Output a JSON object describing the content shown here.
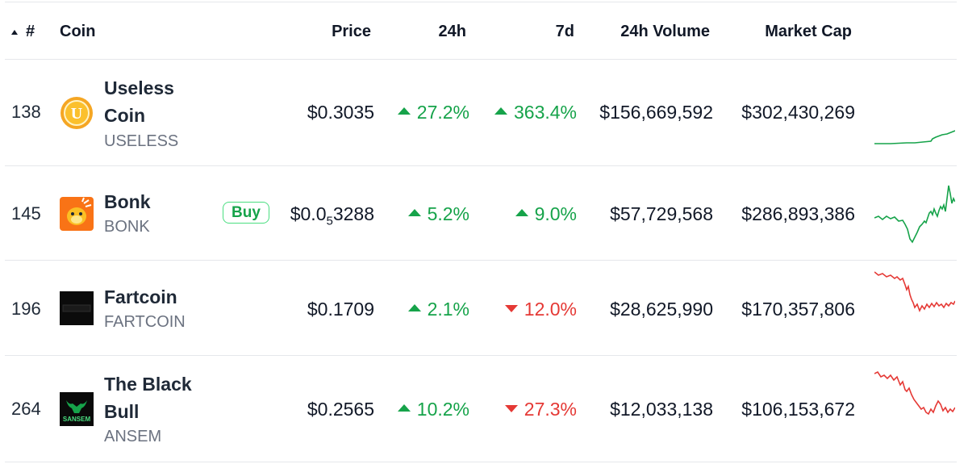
{
  "header": {
    "sort_icon": "triangle-up-icon",
    "rank": "#",
    "coin": "Coin",
    "price": "Price",
    "change_24h": "24h",
    "change_7d": "7d",
    "volume": "24h Volume",
    "market_cap": "Market Cap"
  },
  "colors": {
    "up": "#16a34a",
    "down": "#e53935",
    "border": "#e5e7eb"
  },
  "buy_label": "Buy",
  "coins": [
    {
      "rank": "138",
      "name_line1": "Useless",
      "name_line2": "Coin",
      "symbol": "USELESS",
      "logo": "useless-coin-logo",
      "logo_letter": "U",
      "price": "$0.3035",
      "change_24h": "27.2%",
      "change_24h_dir": "up",
      "change_7d": "363.4%",
      "change_7d_dir": "up",
      "volume": "$156,669,592",
      "market_cap": "$302,430,269",
      "sparkline_trend": "up"
    },
    {
      "rank": "145",
      "name_line1": "Bonk",
      "symbol": "BONK",
      "logo": "bonk-logo",
      "price_prefix": "$0.0",
      "price_sub": "5",
      "price_suffix": "3288",
      "change_24h": "5.2%",
      "change_24h_dir": "up",
      "change_7d": "9.0%",
      "change_7d_dir": "up",
      "volume": "$57,729,568",
      "market_cap": "$286,893,386",
      "sparkline_trend": "up"
    },
    {
      "rank": "196",
      "name_line1": "Fartcoin",
      "symbol": "FARTCOIN",
      "logo": "fartcoin-logo",
      "price": "$0.1709",
      "change_24h": "2.1%",
      "change_24h_dir": "up",
      "change_7d": "12.0%",
      "change_7d_dir": "down",
      "volume": "$28,625,990",
      "market_cap": "$170,357,806",
      "sparkline_trend": "down"
    },
    {
      "rank": "264",
      "name_line1": "The Black",
      "name_line2": "Bull",
      "symbol": "ANSEM",
      "logo": "black-bull-logo",
      "logo_text": "SANSEM",
      "price": "$0.2565",
      "change_24h": "10.2%",
      "change_24h_dir": "up",
      "change_7d": "27.3%",
      "change_7d_dir": "down",
      "volume": "$12,033,138",
      "market_cap": "$106,153,672",
      "sparkline_trend": "down"
    }
  ]
}
